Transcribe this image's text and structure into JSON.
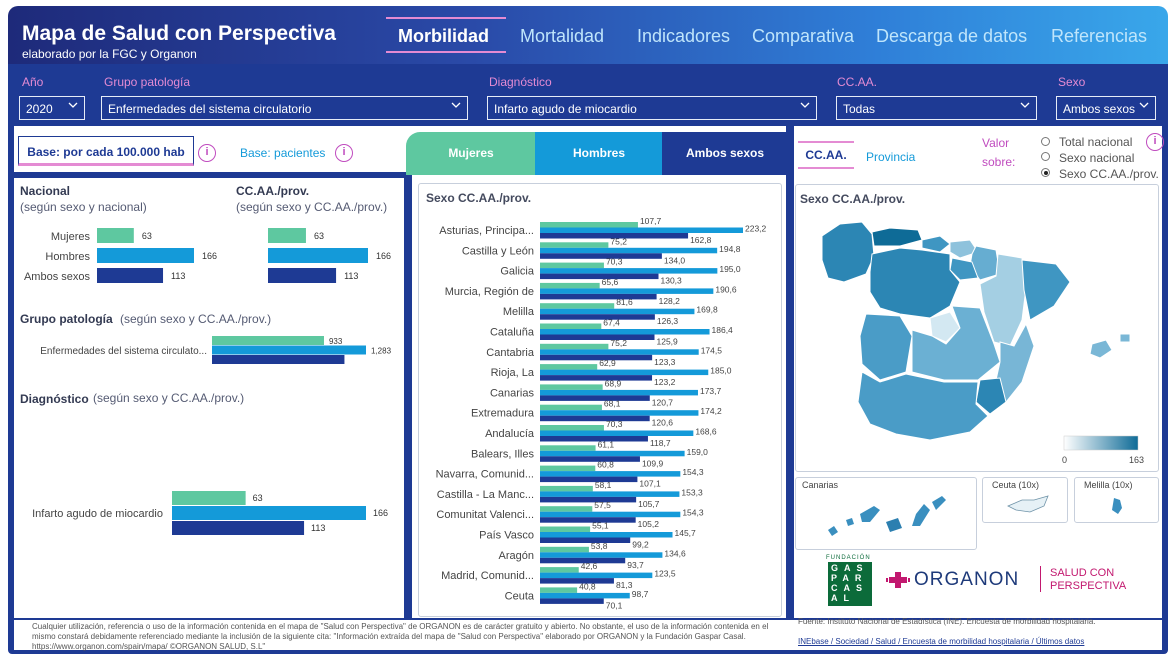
{
  "header": {
    "title": "Mapa de Salud con Perspectiva",
    "subtitle": "elaborado por la FGC y Organon",
    "tabs": [
      "Morbilidad",
      "Mortalidad",
      "Indicadores",
      "Comparativa",
      "Descarga de datos",
      "Referencias"
    ],
    "active_tab": "Morbilidad"
  },
  "filters": {
    "year": {
      "label": "Año",
      "value": "2020"
    },
    "group": {
      "label": "Grupo patología",
      "value": "Enfermedades del sistema circulatorio"
    },
    "diagnosis": {
      "label": "Diagnóstico",
      "value": "Infarto agudo de miocardio"
    },
    "ccaa": {
      "label": "CC.AA.",
      "value": "Todas"
    },
    "sex": {
      "label": "Sexo",
      "value": "Ambos sexos"
    }
  },
  "base": {
    "active": "Base: por cada 100.000 hab",
    "other": "Base: pacientes"
  },
  "sex_buttons": [
    "Mujeres",
    "Hombres",
    "Ambos sexos"
  ],
  "region_tabs": {
    "ccaa": "CC.AA.",
    "provincia": "Provincia"
  },
  "valor_sobre": {
    "label_1": "Valor",
    "label_2": "sobre:",
    "options": [
      "Total nacional",
      "Sexo nacional",
      "Sexo CC.AA./prov."
    ],
    "selected": 2
  },
  "left": {
    "nacional_title": "Nacional",
    "nacional_sub": "(según sexo y nacional)",
    "ccaa_title": "CC.AA./prov.",
    "ccaa_sub": "(según sexo y CC.AA./prov.)",
    "grupo_title": "Grupo patología",
    "grupo_sub": "(según sexo y CC.AA./prov.)",
    "diag_title": "Diagnóstico",
    "diag_sub": "(según sexo y CC.AA./prov.)"
  },
  "colors": {
    "mujeres": "#5ec8a0",
    "hombres": "#149ad9",
    "ambos": "#1e3a94",
    "header_dark": "#1e2a7a",
    "accent_pink": "#e48bd3"
  },
  "map": {
    "title": "Sexo CC.AA./prov.",
    "legend_min": "0",
    "legend_max": "163",
    "insets": [
      "Canarias",
      "Ceuta (10x)",
      "Melilla (10x)"
    ]
  },
  "logos": {
    "fundacion": "FUNDACIÓN",
    "gaspar": [
      "G",
      "A",
      "S",
      "P",
      "A",
      "R",
      "C",
      "A",
      "S",
      "A",
      "L"
    ],
    "organon": "ORGANON",
    "salud_1": "SALUD CON",
    "salud_2": "PERSPECTIVA"
  },
  "footer": "Cualquier utilización, referencia o uso de la información contenida en el mapa de \"Salud con Perspectiva\" de ORGANON es de carácter gratuito y abierto. No obstante, el uso de la información contenida en el mismo constará debidamente referenciado mediante la inclusión de la siguiente cita: \"Información extraída del mapa de \"Salud con Perspectiva\" elaborado por ORGANON y la Fundación Gaspar Casal. https://www.organon.com/spain/mapa/ ©ORGANON SALUD, S.L\"",
  "source": "Fuente: Instituto Nacional de Estadística (INE). Encuesta de morbilidad hospitalaria.",
  "source_link": "INEbase / Sociedad / Salud / Encuesta de morbilidad hospitalaria / Últimos datos",
  "chart_data": [
    {
      "type": "bar",
      "orientation": "horizontal",
      "title": "Nacional",
      "categories": [
        "Mujeres",
        "Hombres",
        "Ambos sexos"
      ],
      "values": [
        63,
        166,
        113
      ],
      "xlim": [
        0,
        166
      ]
    },
    {
      "type": "bar",
      "orientation": "horizontal",
      "title": "CC.AA./prov.",
      "categories": [
        "Mujeres",
        "Hombres",
        "Ambos sexos"
      ],
      "values": [
        63,
        166,
        113
      ],
      "xlim": [
        0,
        166
      ]
    },
    {
      "type": "bar",
      "orientation": "horizontal",
      "title": "Grupo patología",
      "categories": [
        "Enfermedades del sistema circulato..."
      ],
      "series": [
        {
          "name": "Mujeres",
          "values": [
            933
          ]
        },
        {
          "name": "Hombres",
          "values": [
            1283
          ]
        },
        {
          "name": "Ambos sexos",
          "values": [
            null
          ]
        }
      ]
    },
    {
      "type": "bar",
      "orientation": "horizontal",
      "title": "Diagnóstico",
      "categories": [
        "Infarto agudo de miocardio"
      ],
      "series": [
        {
          "name": "Mujeres",
          "values": [
            63
          ]
        },
        {
          "name": "Hombres",
          "values": [
            166
          ]
        },
        {
          "name": "Ambos sexos",
          "values": [
            113
          ]
        }
      ]
    },
    {
      "type": "bar",
      "orientation": "horizontal",
      "title": "Sexo CC.AA./prov.",
      "categories": [
        "Asturias, Principa...",
        "Castilla y León",
        "Galicia",
        "Murcia, Región de",
        "Melilla",
        "Cataluña",
        "Cantabria",
        "Rioja, La",
        "Canarias",
        "Extremadura",
        "Andalucía",
        "Balears, Illes",
        "Navarra, Comunid...",
        "Castilla - La Manc...",
        "Comunitat Valenci...",
        "País Vasco",
        "Aragón",
        "Madrid, Comunid...",
        "Ceuta"
      ],
      "series": [
        {
          "name": "Mujeres",
          "values": [
            107.7,
            75.2,
            70.3,
            65.6,
            81.6,
            67.4,
            75.2,
            62.9,
            68.9,
            68.1,
            70.3,
            61.1,
            60.8,
            58.1,
            57.5,
            55.1,
            53.8,
            42.6,
            40.8
          ]
        },
        {
          "name": "Hombres",
          "values": [
            223.2,
            194.8,
            195.0,
            190.6,
            169.8,
            186.4,
            174.5,
            185.0,
            173.7,
            174.2,
            168.6,
            159.0,
            154.3,
            153.3,
            154.3,
            145.7,
            134.6,
            123.5,
            98.7
          ]
        },
        {
          "name": "Ambos sexos",
          "values": [
            162.8,
            134.0,
            130.3,
            128.2,
            126.3,
            125.9,
            123.3,
            123.2,
            120.7,
            120.6,
            118.7,
            109.9,
            107.1,
            105.7,
            105.2,
            99.2,
            93.7,
            81.3,
            70.1
          ]
        }
      ],
      "labels": {
        "Mujeres": [
          "107,7",
          "75,2",
          "70,3",
          "65,6",
          "81,6",
          "67,4",
          "75,2",
          "62,9",
          "68,9",
          "68,1",
          "70,3",
          "61,1",
          "60,8",
          "58,1",
          "57,5",
          "55,1",
          "53,8",
          "42,6",
          "40,8"
        ],
        "Hombres": [
          "223,2",
          "194,8",
          "195,0",
          "190,6",
          "169,8",
          "186,4",
          "174,5",
          "185,0",
          "173,7",
          "174,2",
          "168,6",
          "159,0",
          "154,3",
          "153,3",
          "154,3",
          "145,7",
          "134,6",
          "123,5",
          "98,7"
        ],
        "Ambos sexos": [
          "162,8",
          "134,0",
          "130,3",
          "128,2",
          "126,3",
          "125,9",
          "123,3",
          "123,2",
          "120,7",
          "120,6",
          "118,7",
          "109,9",
          "107,1",
          "105,7",
          "105,2",
          "99,2",
          "93,7",
          "81,3",
          "70,1"
        ]
      },
      "xlim": [
        0,
        230
      ]
    }
  ]
}
